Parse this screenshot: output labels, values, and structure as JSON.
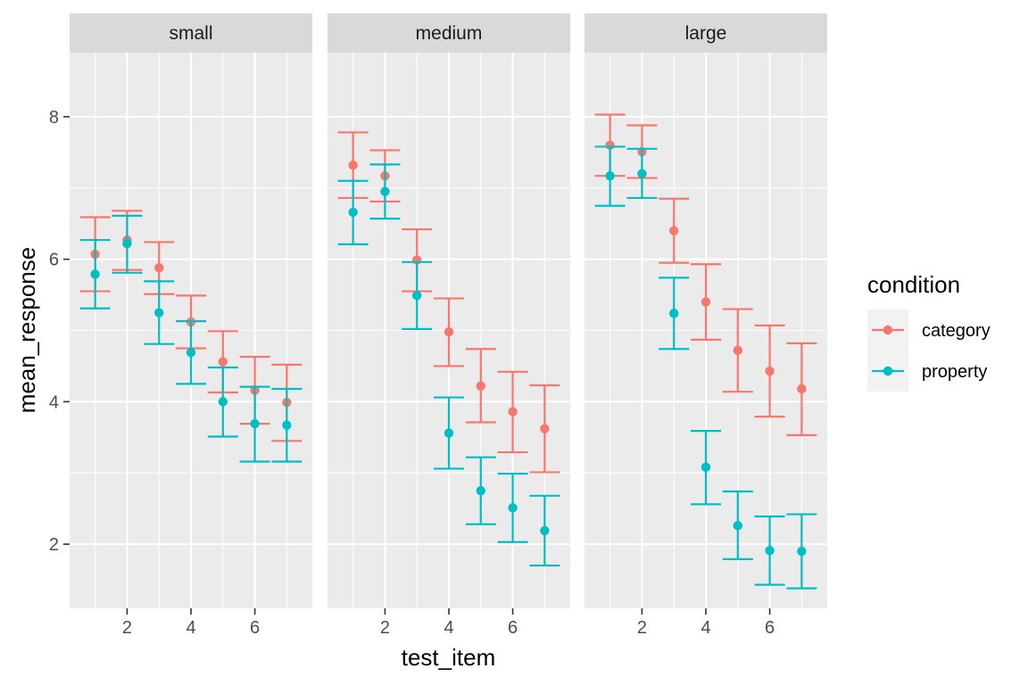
{
  "chart_data": {
    "type": "scatter",
    "facet_variable": "size",
    "xlabel": "test_item",
    "ylabel": "mean_response",
    "xlim": [
      0.2,
      7.8
    ],
    "ylim": [
      1.1,
      8.9
    ],
    "x_ticks": [
      2,
      4,
      6
    ],
    "y_ticks": [
      2,
      4,
      6,
      8
    ],
    "grid": true,
    "legend": {
      "title": "condition",
      "position": "right",
      "entries": [
        "category",
        "property"
      ]
    },
    "colors": {
      "category": "#F8766D",
      "property": "#00BFC4"
    },
    "panels": [
      {
        "label": "small",
        "series": [
          {
            "name": "category",
            "x": [
              1,
              2,
              3,
              4,
              5,
              6,
              7
            ],
            "y": [
              6.07,
              6.27,
              5.88,
              5.12,
              4.56,
              4.16,
              3.99
            ],
            "lower": [
              5.55,
              5.85,
              5.51,
              4.75,
              4.13,
              3.69,
              3.45
            ],
            "upper": [
              6.59,
              6.68,
              6.24,
              5.49,
              4.99,
              4.63,
              4.52
            ]
          },
          {
            "name": "property",
            "x": [
              1,
              2,
              3,
              4,
              5,
              6,
              7
            ],
            "y": [
              5.79,
              6.22,
              5.25,
              4.69,
              4.0,
              3.69,
              3.67
            ],
            "lower": [
              5.31,
              5.81,
              4.81,
              4.25,
              3.51,
              3.16,
              3.16
            ],
            "upper": [
              6.27,
              6.61,
              5.69,
              5.13,
              4.48,
              4.21,
              4.18
            ]
          }
        ]
      },
      {
        "label": "medium",
        "series": [
          {
            "name": "category",
            "x": [
              1,
              2,
              3,
              4,
              5,
              6,
              7
            ],
            "y": [
              7.32,
              7.17,
              5.99,
              4.98,
              4.22,
              3.86,
              3.62
            ],
            "lower": [
              6.86,
              6.81,
              5.55,
              4.5,
              3.71,
              3.29,
              3.01
            ],
            "upper": [
              7.78,
              7.53,
              6.42,
              5.45,
              4.74,
              4.42,
              4.23
            ]
          },
          {
            "name": "property",
            "x": [
              1,
              2,
              3,
              4,
              5,
              6,
              7
            ],
            "y": [
              6.66,
              6.95,
              5.49,
              3.56,
              2.75,
              2.51,
              2.19
            ],
            "lower": [
              6.21,
              6.57,
              5.02,
              3.06,
              2.28,
              2.03,
              1.7
            ],
            "upper": [
              7.1,
              7.33,
              5.96,
              4.06,
              3.22,
              2.99,
              2.68
            ]
          }
        ]
      },
      {
        "label": "large",
        "series": [
          {
            "name": "category",
            "x": [
              1,
              2,
              3,
              4,
              5,
              6,
              7
            ],
            "y": [
              7.6,
              7.51,
              6.4,
              5.4,
              4.72,
              4.43,
              4.18
            ],
            "lower": [
              7.17,
              7.14,
              5.95,
              4.87,
              4.14,
              3.79,
              3.53
            ],
            "upper": [
              8.03,
              7.88,
              6.85,
              5.93,
              5.3,
              5.07,
              4.82
            ]
          },
          {
            "name": "property",
            "x": [
              1,
              2,
              3,
              4,
              5,
              6,
              7
            ],
            "y": [
              7.17,
              7.2,
              5.24,
              3.08,
              2.26,
              1.91,
              1.9
            ],
            "lower": [
              6.75,
              6.86,
              4.74,
              2.56,
              1.79,
              1.43,
              1.38
            ],
            "upper": [
              7.58,
              7.55,
              5.74,
              3.59,
              2.74,
              2.39,
              2.42
            ]
          }
        ]
      }
    ]
  }
}
